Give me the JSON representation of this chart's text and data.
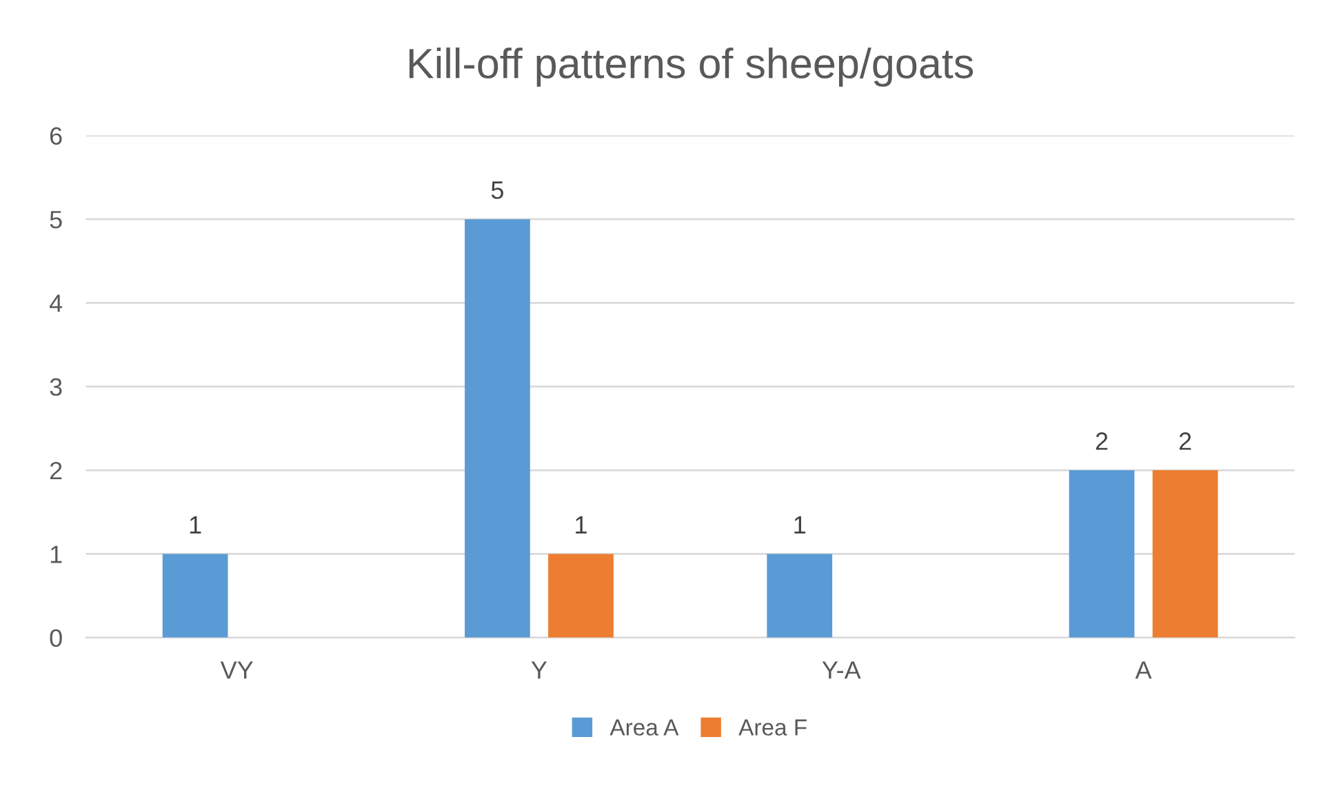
{
  "chart_data": {
    "type": "bar",
    "title": "Kill-off patterns of sheep/goats",
    "categories": [
      "VY",
      "Y",
      "Y-A",
      "A"
    ],
    "series": [
      {
        "name": "Area A",
        "color": "#5b9bd5",
        "values": [
          1,
          5,
          1,
          2
        ],
        "value_labels": [
          "1",
          "5",
          "1",
          "2"
        ]
      },
      {
        "name": "Area F",
        "color": "#ed7d31",
        "values": [
          null,
          1,
          null,
          2
        ],
        "value_labels": [
          null,
          "1",
          null,
          "2"
        ]
      }
    ],
    "ylim": [
      0,
      6
    ],
    "yticks": [
      0,
      1,
      2,
      3,
      4,
      5,
      6
    ],
    "grid": "y",
    "legend": "bottom"
  }
}
